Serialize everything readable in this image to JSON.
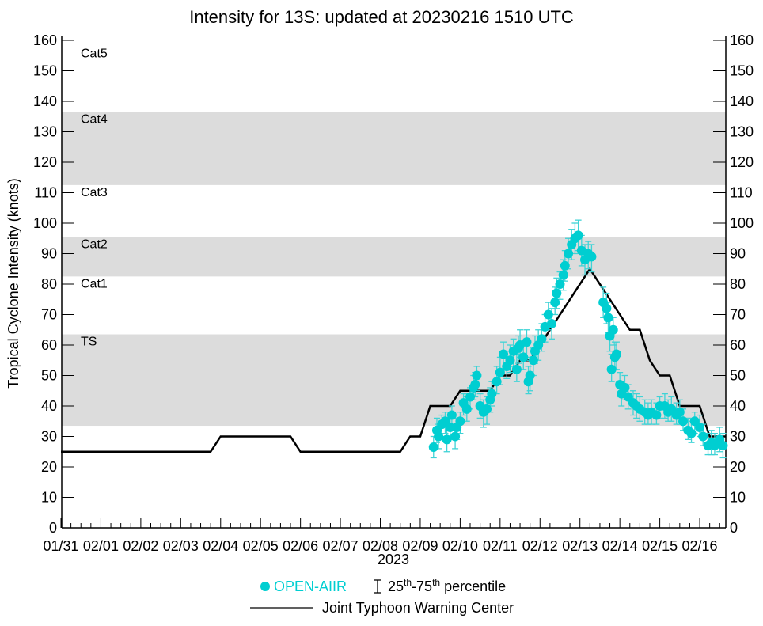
{
  "chart_data": {
    "type": "scatter",
    "title": "Intensity for 13S: updated at 20230216 1510 UTC",
    "ylabel": "Tropical Cyclone Intensity (knots)",
    "xlabel": "2023",
    "ylim": [
      0,
      160
    ],
    "xlim": [
      "2023-01-31 00:00",
      "2023-02-16 15:30"
    ],
    "yticks": [
      0,
      10,
      20,
      30,
      40,
      50,
      60,
      70,
      80,
      90,
      100,
      110,
      120,
      130,
      140,
      150,
      160
    ],
    "xtick_labels": [
      "01/31",
      "02/01",
      "02/02",
      "02/03",
      "02/04",
      "02/05",
      "02/06",
      "02/07",
      "02/08",
      "02/09",
      "02/10",
      "02/11",
      "02/12",
      "02/13",
      "02/14",
      "02/15",
      "02/16"
    ],
    "grid": false,
    "legend_position": "bottom",
    "colors": {
      "open_aiir": "#00CED1",
      "errorbar": "#3FD3D6",
      "jtwc": "#000000",
      "band": "#DCDCDC"
    },
    "categories": [
      {
        "label": "TS",
        "min": 34,
        "max": 63,
        "shaded": true
      },
      {
        "label": "Cat1",
        "min": 64,
        "max": 82,
        "shaded": false
      },
      {
        "label": "Cat2",
        "min": 83,
        "max": 95,
        "shaded": true
      },
      {
        "label": "Cat3",
        "min": 96,
        "max": 112,
        "shaded": false
      },
      {
        "label": "Cat4",
        "min": 113,
        "max": 136,
        "shaded": true
      },
      {
        "label": "Cat5",
        "min": 137,
        "max": 160,
        "shaded": false
      }
    ],
    "series": [
      {
        "name": "Joint Typhoon Warning Center",
        "type": "line",
        "points": [
          [
            "2023-01-31 00:00",
            25
          ],
          [
            "2023-02-03 18:00",
            25
          ],
          [
            "2023-02-04 00:00",
            30
          ],
          [
            "2023-02-05 18:00",
            30
          ],
          [
            "2023-02-06 00:00",
            25
          ],
          [
            "2023-02-08 12:00",
            25
          ],
          [
            "2023-02-08 18:00",
            30
          ],
          [
            "2023-02-09 00:00",
            30
          ],
          [
            "2023-02-09 06:00",
            40
          ],
          [
            "2023-02-09 18:00",
            40
          ],
          [
            "2023-02-10 00:00",
            45
          ],
          [
            "2023-02-10 18:00",
            45
          ],
          [
            "2023-02-11 00:00",
            50
          ],
          [
            "2023-02-11 06:00",
            50
          ],
          [
            "2023-02-11 12:00",
            55
          ],
          [
            "2023-02-11 18:00",
            55
          ],
          [
            "2023-02-13 06:00",
            85
          ],
          [
            "2023-02-14 06:00",
            65
          ],
          [
            "2023-02-14 12:00",
            65
          ],
          [
            "2023-02-14 18:00",
            55
          ],
          [
            "2023-02-15 00:00",
            50
          ],
          [
            "2023-02-15 06:00",
            50
          ],
          [
            "2023-02-15 12:00",
            40
          ],
          [
            "2023-02-16 00:00",
            40
          ],
          [
            "2023-02-16 06:00",
            30
          ],
          [
            "2023-02-16 15:30",
            30
          ]
        ]
      },
      {
        "name": "OPEN-AIIR",
        "type": "scatter",
        "errorbar_label": "25th-75th percentile",
        "columns": [
          "time",
          "value",
          "p25",
          "p75"
        ],
        "points": [
          [
            "2023-02-09 08:00",
            26.5,
            23,
            30
          ],
          [
            "2023-02-09 10:00",
            32,
            28,
            36
          ],
          [
            "2023-02-09 11:00",
            30,
            26,
            34
          ],
          [
            "2023-02-09 13:00",
            34,
            30,
            37
          ],
          [
            "2023-02-09 15:00",
            35,
            31,
            38
          ],
          [
            "2023-02-09 16:00",
            29,
            25,
            33
          ],
          [
            "2023-02-09 18:00",
            33,
            29,
            37
          ],
          [
            "2023-02-09 19:00",
            37,
            33,
            40
          ],
          [
            "2023-02-09 21:00",
            30,
            26,
            34
          ],
          [
            "2023-02-09 22:00",
            33,
            29,
            36
          ],
          [
            "2023-02-10 00:00",
            35,
            31,
            38
          ],
          [
            "2023-02-10 02:00",
            41,
            37,
            44
          ],
          [
            "2023-02-10 04:00",
            39,
            35,
            43
          ],
          [
            "2023-02-10 06:00",
            43,
            39,
            46
          ],
          [
            "2023-02-10 08:00",
            46,
            42,
            50
          ],
          [
            "2023-02-10 09:00",
            47,
            43,
            51
          ],
          [
            "2023-02-10 10:00",
            50,
            45,
            53
          ],
          [
            "2023-02-10 12:00",
            40,
            36,
            44
          ],
          [
            "2023-02-10 14:00",
            38,
            33,
            42
          ],
          [
            "2023-02-10 16:00",
            39,
            34,
            43
          ],
          [
            "2023-02-10 18:00",
            42,
            38,
            46
          ],
          [
            "2023-02-10 19:00",
            44,
            40,
            48
          ],
          [
            "2023-02-10 22:00",
            48,
            44,
            53
          ],
          [
            "2023-02-11 00:00",
            51,
            47,
            56
          ],
          [
            "2023-02-11 02:00",
            57,
            52,
            61
          ],
          [
            "2023-02-11 04:00",
            53,
            49,
            58
          ],
          [
            "2023-02-11 06:00",
            55,
            51,
            60
          ],
          [
            "2023-02-11 08:00",
            58,
            53,
            62
          ],
          [
            "2023-02-11 10:00",
            52,
            48,
            57
          ],
          [
            "2023-02-11 11:00",
            59,
            54,
            63
          ],
          [
            "2023-02-11 12:00",
            60,
            56,
            65
          ],
          [
            "2023-02-11 14:00",
            56,
            52,
            61
          ],
          [
            "2023-02-11 16:00",
            61,
            56,
            65
          ],
          [
            "2023-02-11 17:00",
            48,
            44,
            53
          ],
          [
            "2023-02-11 18:00",
            50,
            45,
            55
          ],
          [
            "2023-02-11 20:00",
            55,
            50,
            59
          ],
          [
            "2023-02-11 21:00",
            58,
            54,
            63
          ],
          [
            "2023-02-11 23:00",
            60,
            55,
            65
          ],
          [
            "2023-02-12 01:00",
            62,
            58,
            67
          ],
          [
            "2023-02-12 03:00",
            66,
            61,
            70
          ],
          [
            "2023-02-12 05:00",
            70,
            65,
            74
          ],
          [
            "2023-02-12 07:00",
            67,
            62,
            72
          ],
          [
            "2023-02-12 09:00",
            74,
            70,
            79
          ],
          [
            "2023-02-12 10:00",
            77,
            72,
            82
          ],
          [
            "2023-02-12 12:00",
            80,
            75,
            84
          ],
          [
            "2023-02-12 14:00",
            83,
            78,
            88
          ],
          [
            "2023-02-12 15:00",
            86,
            81,
            91
          ],
          [
            "2023-02-12 17:00",
            90,
            85,
            95
          ],
          [
            "2023-02-12 19:00",
            93,
            88,
            98
          ],
          [
            "2023-02-12 21:00",
            95,
            90,
            100
          ],
          [
            "2023-02-12 23:00",
            96,
            91,
            101
          ],
          [
            "2023-02-13 01:00",
            91,
            86,
            96
          ],
          [
            "2023-02-13 03:00",
            88,
            83,
            93
          ],
          [
            "2023-02-13 05:00",
            90,
            85,
            94
          ],
          [
            "2023-02-13 07:00",
            89,
            84,
            93
          ],
          [
            "2023-02-13 14:00",
            74,
            69,
            79
          ],
          [
            "2023-02-13 16:00",
            72,
            67,
            77
          ],
          [
            "2023-02-13 17:00",
            69,
            64,
            74
          ],
          [
            "2023-02-13 18:00",
            63,
            58,
            68
          ],
          [
            "2023-02-13 19:00",
            52,
            48,
            57
          ],
          [
            "2023-02-13 20:00",
            65,
            60,
            69
          ],
          [
            "2023-02-13 21:00",
            56,
            52,
            61
          ],
          [
            "2023-02-13 22:00",
            57,
            52,
            61
          ],
          [
            "2023-02-14 00:00",
            47,
            43,
            51
          ],
          [
            "2023-02-14 01:00",
            44,
            40,
            48
          ],
          [
            "2023-02-14 03:00",
            46,
            42,
            50
          ],
          [
            "2023-02-14 05:00",
            43,
            39,
            47
          ],
          [
            "2023-02-14 08:00",
            41,
            37,
            45
          ],
          [
            "2023-02-14 10:00",
            40,
            36,
            44
          ],
          [
            "2023-02-14 12:00",
            39,
            35,
            43
          ],
          [
            "2023-02-14 15:00",
            38,
            34,
            42
          ],
          [
            "2023-02-14 17:00",
            37,
            34,
            41
          ],
          [
            "2023-02-14 19:00",
            38,
            34,
            42
          ],
          [
            "2023-02-14 22:00",
            37,
            34,
            41
          ],
          [
            "2023-02-15 00:00",
            40,
            36,
            43
          ],
          [
            "2023-02-15 03:00",
            40,
            36,
            44
          ],
          [
            "2023-02-15 05:00",
            38,
            35,
            42
          ],
          [
            "2023-02-15 07:00",
            39,
            35,
            43
          ],
          [
            "2023-02-15 10:00",
            37,
            34,
            41
          ],
          [
            "2023-02-15 12:00",
            38,
            34,
            42
          ],
          [
            "2023-02-15 14:00",
            35,
            32,
            39
          ],
          [
            "2023-02-15 17:00",
            32,
            29,
            36
          ],
          [
            "2023-02-15 19:00",
            31,
            28,
            35
          ],
          [
            "2023-02-15 21:00",
            35,
            31,
            38
          ],
          [
            "2023-02-16 00:00",
            33,
            30,
            37
          ],
          [
            "2023-02-16 02:00",
            30,
            27,
            34
          ],
          [
            "2023-02-16 05:00",
            27,
            24,
            31
          ],
          [
            "2023-02-16 07:00",
            28,
            24,
            32
          ],
          [
            "2023-02-16 09:00",
            27,
            24,
            31
          ],
          [
            "2023-02-16 12:00",
            29,
            25,
            33
          ],
          [
            "2023-02-16 14:00",
            27,
            23,
            31
          ]
        ]
      }
    ]
  },
  "legend": {
    "open_aiir": "OPEN-AIIR",
    "pct_a": "25",
    "pct_a_sup": "th",
    "pct_dash": "-75",
    "pct_b_sup": "th",
    "pct_rest": " percentile",
    "jtwc": "Joint Typhoon Warning Center"
  }
}
